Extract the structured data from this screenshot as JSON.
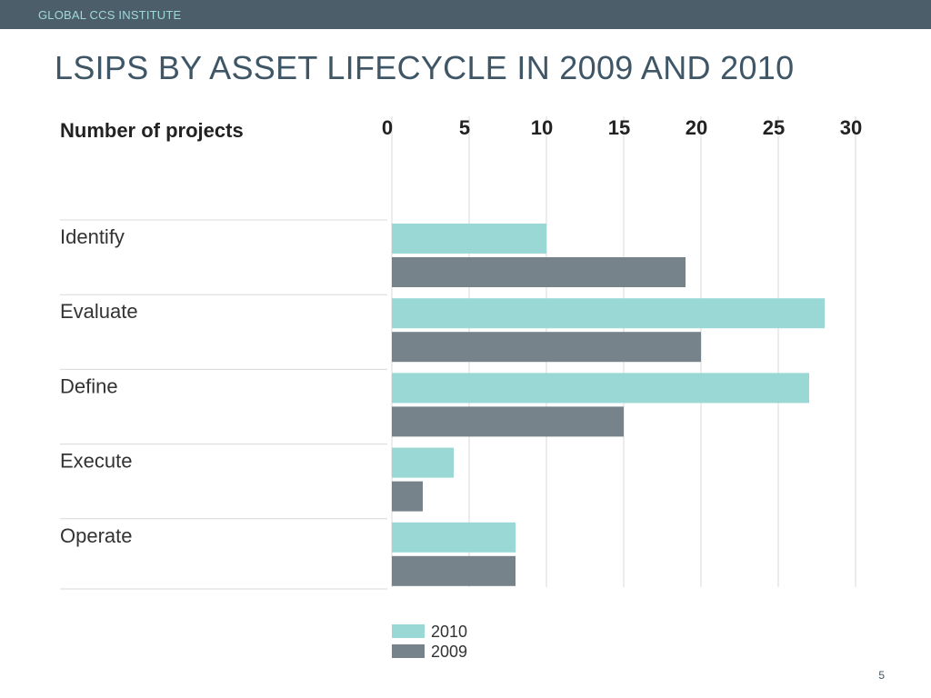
{
  "header": {
    "org": "GLOBAL CCS INSTITUTE"
  },
  "page": {
    "title": "LSIPS BY ASSET LIFECYCLE IN 2009 AND 2010",
    "number": "5"
  },
  "colors": {
    "topbar": "#4d5e6b",
    "s2010": "#9ad8d6",
    "s2009": "#76838a",
    "grid": "#d8d8d8"
  },
  "chart_data": {
    "type": "bar",
    "orientation": "horizontal",
    "ylabel": "Number of projects",
    "categories": [
      "Identify",
      "Evaluate",
      "Define",
      "Execute",
      "Operate"
    ],
    "series": [
      {
        "name": "2010",
        "values": [
          10,
          28,
          27,
          4,
          8
        ]
      },
      {
        "name": "2009",
        "values": [
          19,
          20,
          15,
          2,
          8
        ]
      }
    ],
    "xlim": [
      0,
      30
    ],
    "xticks": [
      "0",
      "5",
      "10",
      "15",
      "20",
      "25",
      "30"
    ],
    "legend_position": "bottom-left",
    "grid": true
  }
}
